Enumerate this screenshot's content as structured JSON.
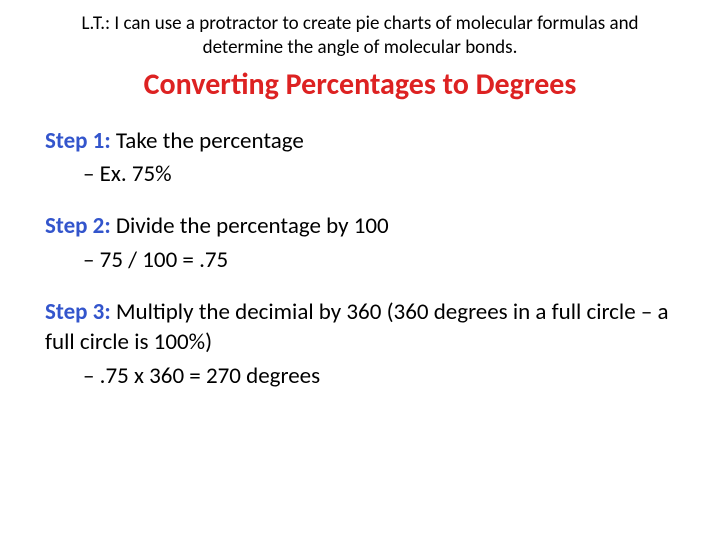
{
  "lt": "L.T.: I can use a protractor to create pie charts of molecular formulas and determine the angle of molecular bonds.",
  "title": "Converting Percentages to Degrees",
  "steps": {
    "step1": {
      "label": "Step 1:",
      "text": " Take the percentage",
      "example": "Ex. 75%"
    },
    "step2": {
      "label": "Step 2:",
      "text": " Divide the percentage by 100",
      "example": "75 / 100 = .75"
    },
    "step3": {
      "label": "Step 3:",
      "text": " Multiply the decimial by 360 (360 degrees in a full circle – a full circle is 100%)",
      "example": ".75 x 360 = 270 degrees"
    }
  },
  "colors": {
    "background": "#ffffff",
    "body_text": "#000000",
    "title_color": "#dd2222",
    "step_label_color": "#3355cc"
  },
  "typography": {
    "lt_fontsize": 19,
    "title_fontsize": 30,
    "body_fontsize": 23,
    "font_family": "Calibri"
  }
}
